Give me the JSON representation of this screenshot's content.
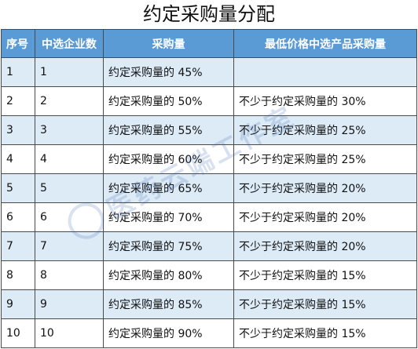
{
  "title": "约定采购量分配",
  "columns": [
    "序号",
    "中选企业数",
    "采购量",
    "最低价格中选产品采购量"
  ],
  "rows": [
    {
      "seq": "1",
      "count": "1",
      "volume": "约定采购量的 45%",
      "min_volume": ""
    },
    {
      "seq": "2",
      "count": "2",
      "volume": "约定采购量的 50%",
      "min_volume": "不少于约定采购量的 30%"
    },
    {
      "seq": "3",
      "count": "3",
      "volume": "约定采购量的 55%",
      "min_volume": "不少于约定采购量的 25%"
    },
    {
      "seq": "4",
      "count": "4",
      "volume": "约定采购量的 60%",
      "min_volume": "不少于约定采购量的 25%"
    },
    {
      "seq": "5",
      "count": "5",
      "volume": "约定采购量的 65%",
      "min_volume": "不少于约定采购量的 20%"
    },
    {
      "seq": "6",
      "count": "6",
      "volume": "约定采购量的 70%",
      "min_volume": "不少于约定采购量的 20%"
    },
    {
      "seq": "7",
      "count": "7",
      "volume": "约定采购量的 75%",
      "min_volume": "不少于约定采购量的 20%"
    },
    {
      "seq": "8",
      "count": "8",
      "volume": "约定采购量的 80%",
      "min_volume": "不少于约定采购量的 15%"
    },
    {
      "seq": "9",
      "count": "9",
      "volume": "约定采购量的 85%",
      "min_volume": "不少于约定采购量的 15%"
    },
    {
      "seq": "10",
      "count": "10",
      "volume": "约定采购量的 90%",
      "min_volume": "不少于约定采购量的 15%"
    }
  ],
  "watermark": {
    "text": "医药云端工作室",
    "icon": "logo-icon"
  },
  "colors": {
    "header_bg": "#5b9bd5",
    "header_text": "#ffffff",
    "stripe": "#ddebf7",
    "border": "#4a4a4a"
  }
}
